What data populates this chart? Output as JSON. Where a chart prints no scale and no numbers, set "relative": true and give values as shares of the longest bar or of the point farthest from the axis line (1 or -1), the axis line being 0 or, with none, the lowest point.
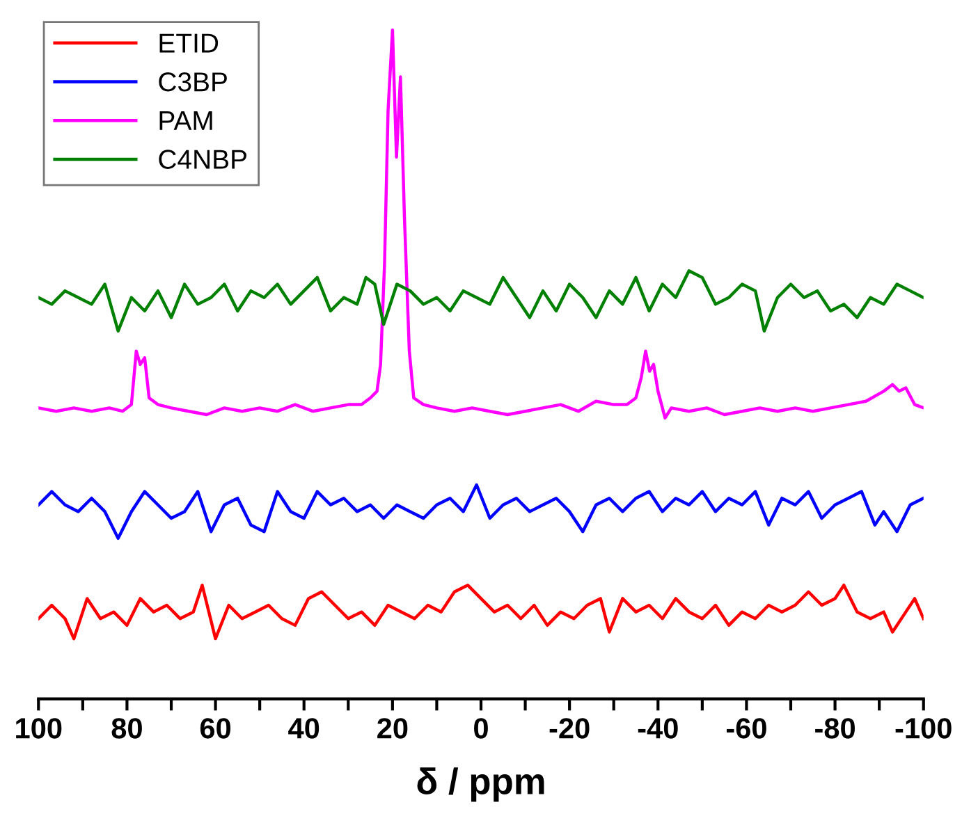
{
  "chart_data": {
    "type": "line",
    "relative": true,
    "xlabel": "δ / ppm",
    "xlim": [
      100,
      -100
    ],
    "xticks": [
      100,
      {
        "value": 90,
        "label": null
      },
      80,
      {
        "value": 70,
        "label": null
      },
      60,
      {
        "value": 50,
        "label": null
      },
      40,
      {
        "value": 30,
        "label": null
      },
      20,
      {
        "value": 10,
        "label": null
      },
      0,
      {
        "value": -10,
        "label": null
      },
      -20,
      {
        "value": -30,
        "label": null
      },
      -40,
      {
        "value": -50,
        "label": null
      },
      -60,
      {
        "value": -70,
        "label": null
      },
      -80,
      {
        "value": -90,
        "label": null
      },
      -100
    ],
    "legend": "top left",
    "grid": false,
    "marker": "none",
    "line_style": "solid",
    "tick_labels": "x",
    "series": [
      {
        "name": "ETID",
        "color": "#ff0000",
        "x": [
          100,
          97,
          94,
          92,
          89,
          86,
          83,
          80,
          77,
          74,
          71,
          68,
          65,
          63,
          60,
          57,
          54,
          51,
          48,
          45,
          42,
          39,
          36,
          33,
          30,
          27,
          24,
          21,
          18,
          15,
          12,
          9,
          6,
          3,
          0,
          -3,
          -6,
          -9,
          -12,
          -15,
          -18,
          -21,
          -24,
          -27,
          -29,
          -32,
          -35,
          -38,
          -41,
          -44,
          -47,
          -50,
          -53,
          -56,
          -59,
          -62,
          -65,
          -68,
          -71,
          -74,
          -77,
          -80,
          -82,
          -85,
          -88,
          -91,
          -93,
          -96,
          -98,
          -100
        ],
        "values": [
          0.12,
          0.14,
          0.12,
          0.09,
          0.15,
          0.12,
          0.13,
          0.11,
          0.15,
          0.13,
          0.14,
          0.12,
          0.13,
          0.17,
          0.09,
          0.14,
          0.12,
          0.13,
          0.14,
          0.12,
          0.11,
          0.15,
          0.16,
          0.14,
          0.12,
          0.13,
          0.11,
          0.14,
          0.13,
          0.12,
          0.14,
          0.13,
          0.16,
          0.17,
          0.15,
          0.13,
          0.14,
          0.12,
          0.14,
          0.11,
          0.13,
          0.12,
          0.14,
          0.15,
          0.1,
          0.15,
          0.13,
          0.14,
          0.12,
          0.15,
          0.13,
          0.12,
          0.14,
          0.11,
          0.13,
          0.12,
          0.14,
          0.13,
          0.14,
          0.16,
          0.14,
          0.15,
          0.17,
          0.13,
          0.12,
          0.13,
          0.1,
          0.13,
          0.15,
          0.12
        ]
      },
      {
        "name": "C3BP",
        "color": "#0000ff",
        "x": [
          100,
          97,
          94,
          91,
          88,
          85,
          82,
          79,
          76,
          73,
          70,
          67,
          64,
          61,
          58,
          55,
          52,
          49,
          46,
          43,
          40,
          37,
          34,
          31,
          28,
          25,
          22,
          19,
          16,
          13,
          10,
          7,
          4,
          1,
          -2,
          -5,
          -8,
          -11,
          -14,
          -17,
          -20,
          -23,
          -26,
          -29,
          -32,
          -35,
          -38,
          -41,
          -44,
          -47,
          -50,
          -53,
          -56,
          -59,
          -62,
          -65,
          -68,
          -71,
          -74,
          -77,
          -80,
          -83,
          -86,
          -89,
          -91,
          -94,
          -97,
          -100
        ],
        "values": [
          0.29,
          0.31,
          0.29,
          0.28,
          0.3,
          0.28,
          0.24,
          0.28,
          0.31,
          0.29,
          0.27,
          0.28,
          0.31,
          0.25,
          0.29,
          0.3,
          0.26,
          0.25,
          0.31,
          0.28,
          0.27,
          0.31,
          0.29,
          0.3,
          0.28,
          0.29,
          0.27,
          0.29,
          0.28,
          0.27,
          0.29,
          0.3,
          0.28,
          0.32,
          0.27,
          0.29,
          0.3,
          0.28,
          0.29,
          0.3,
          0.28,
          0.25,
          0.29,
          0.3,
          0.28,
          0.3,
          0.31,
          0.28,
          0.3,
          0.29,
          0.31,
          0.28,
          0.3,
          0.29,
          0.31,
          0.26,
          0.3,
          0.29,
          0.31,
          0.27,
          0.29,
          0.3,
          0.31,
          0.26,
          0.28,
          0.25,
          0.29,
          0.3
        ]
      },
      {
        "name": "PAM",
        "color": "#ff00ff",
        "x": [
          100,
          96,
          92,
          88,
          84,
          81,
          79,
          77.9,
          77,
          76,
          75,
          73,
          70,
          66,
          62,
          58,
          54,
          50,
          46,
          42,
          38,
          34,
          30,
          27,
          25,
          23.5,
          22.7,
          21.8,
          21,
          20,
          19.1,
          18.2,
          17.3,
          16.2,
          15.2,
          13,
          10,
          6,
          2,
          -2,
          -6,
          -10,
          -14,
          -18,
          -22,
          -26,
          -30,
          -33,
          -35,
          -36.2,
          -37.2,
          -38.1,
          -39,
          -40,
          -41.6,
          -43,
          -47,
          -51,
          -55,
          -59,
          -63,
          -67,
          -71,
          -75,
          -79,
          -83,
          -87,
          -91,
          -93,
          -94.5,
          -96,
          -98,
          -100
        ],
        "values": [
          0.435,
          0.43,
          0.435,
          0.43,
          0.435,
          0.43,
          0.44,
          0.52,
          0.5,
          0.51,
          0.45,
          0.44,
          0.435,
          0.43,
          0.425,
          0.435,
          0.43,
          0.435,
          0.43,
          0.44,
          0.43,
          0.435,
          0.44,
          0.44,
          0.45,
          0.46,
          0.5,
          0.65,
          0.88,
          1.0,
          0.81,
          0.93,
          0.72,
          0.52,
          0.45,
          0.44,
          0.435,
          0.43,
          0.435,
          0.43,
          0.425,
          0.43,
          0.435,
          0.44,
          0.43,
          0.445,
          0.44,
          0.44,
          0.45,
          0.48,
          0.52,
          0.49,
          0.5,
          0.46,
          0.42,
          0.435,
          0.43,
          0.435,
          0.425,
          0.43,
          0.435,
          0.43,
          0.435,
          0.43,
          0.435,
          0.44,
          0.445,
          0.46,
          0.47,
          0.46,
          0.465,
          0.44,
          0.435
        ]
      },
      {
        "name": "C4NBP",
        "color": "#008000",
        "x": [
          100,
          97,
          94,
          91,
          88,
          85,
          82,
          79,
          76,
          73,
          70,
          67,
          64,
          61,
          58,
          55,
          52,
          49,
          46,
          43,
          40,
          37,
          34,
          31,
          28,
          26,
          24,
          22,
          19,
          16,
          13,
          10,
          7,
          4,
          1,
          -2,
          -5,
          -8,
          -11,
          -14,
          -17,
          -20,
          -23,
          -26,
          -29,
          -32,
          -35,
          -38,
          -41,
          -44,
          -47,
          -50,
          -53,
          -56,
          -59,
          -62,
          -64,
          -67,
          -70,
          -73,
          -76,
          -79,
          -82,
          -85,
          -88,
          -91,
          -94,
          -97,
          -100
        ],
        "values": [
          0.6,
          0.59,
          0.61,
          0.6,
          0.59,
          0.62,
          0.55,
          0.6,
          0.58,
          0.61,
          0.57,
          0.62,
          0.59,
          0.6,
          0.62,
          0.58,
          0.61,
          0.6,
          0.62,
          0.59,
          0.61,
          0.63,
          0.58,
          0.6,
          0.59,
          0.63,
          0.62,
          0.56,
          0.62,
          0.61,
          0.59,
          0.6,
          0.58,
          0.61,
          0.6,
          0.59,
          0.63,
          0.6,
          0.57,
          0.61,
          0.58,
          0.62,
          0.6,
          0.57,
          0.61,
          0.59,
          0.63,
          0.58,
          0.62,
          0.6,
          0.64,
          0.63,
          0.59,
          0.6,
          0.62,
          0.61,
          0.55,
          0.6,
          0.62,
          0.6,
          0.61,
          0.58,
          0.59,
          0.57,
          0.6,
          0.59,
          0.62,
          0.61,
          0.6
        ]
      }
    ]
  }
}
